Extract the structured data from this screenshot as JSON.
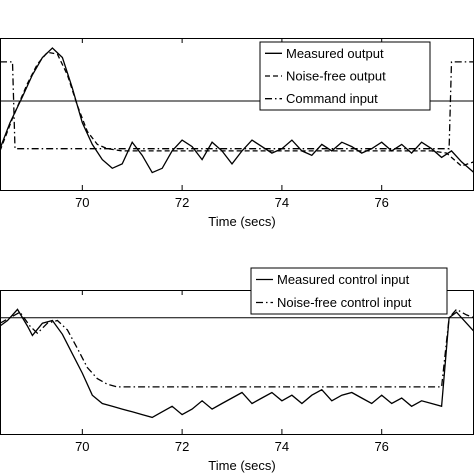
{
  "chart_data": [
    {
      "type": "line",
      "xlabel": "Time (secs)",
      "xlim": [
        68.35,
        77.85
      ],
      "ylim": [
        -1.45,
        2.05
      ],
      "xticks": [
        70,
        72,
        74,
        76
      ],
      "hline": 0.6,
      "legend_position": "top-right",
      "series": [
        {
          "name": "Measured output",
          "style": "solid",
          "x": [
            68.35,
            68.55,
            68.8,
            69.0,
            69.2,
            69.4,
            69.6,
            69.8,
            70.0,
            70.2,
            70.4,
            70.6,
            70.8,
            71.0,
            71.2,
            71.4,
            71.6,
            71.8,
            72.0,
            72.2,
            72.4,
            72.6,
            72.8,
            73.0,
            73.2,
            73.4,
            73.6,
            73.8,
            74.0,
            74.2,
            74.4,
            74.6,
            74.8,
            75.0,
            75.2,
            75.4,
            75.6,
            75.8,
            76.0,
            76.2,
            76.4,
            76.6,
            76.8,
            77.0,
            77.2,
            77.4,
            77.6,
            77.85
          ],
          "y": [
            -0.5,
            0.1,
            0.7,
            1.2,
            1.6,
            1.82,
            1.6,
            0.9,
            0.1,
            -0.4,
            -0.75,
            -0.95,
            -0.85,
            -0.35,
            -0.65,
            -1.05,
            -0.95,
            -0.55,
            -0.3,
            -0.45,
            -0.75,
            -0.35,
            -0.55,
            -0.85,
            -0.55,
            -0.3,
            -0.45,
            -0.6,
            -0.5,
            -0.3,
            -0.55,
            -0.65,
            -0.4,
            -0.55,
            -0.35,
            -0.45,
            -0.6,
            -0.5,
            -0.35,
            -0.55,
            -0.4,
            -0.6,
            -0.35,
            -0.5,
            -0.7,
            -0.55,
            -0.8,
            -1.05
          ]
        },
        {
          "name": "Noise-free output",
          "style": "dashed",
          "x": [
            68.35,
            68.6,
            68.9,
            69.1,
            69.3,
            69.5,
            69.7,
            69.9,
            70.1,
            70.3,
            70.5,
            70.8,
            71.0,
            72.0,
            73.0,
            74.0,
            75.0,
            76.0,
            77.0,
            77.3,
            77.6,
            77.85
          ],
          "y": [
            -0.55,
            0.2,
            1.0,
            1.45,
            1.72,
            1.68,
            1.2,
            0.5,
            -0.1,
            -0.4,
            -0.5,
            -0.55,
            -0.55,
            -0.55,
            -0.55,
            -0.55,
            -0.55,
            -0.55,
            -0.55,
            -0.6,
            -0.9,
            -0.8
          ]
        },
        {
          "name": "Command input",
          "style": "dashdot",
          "x": [
            68.35,
            68.6,
            68.65,
            77.35,
            77.4,
            77.85
          ],
          "y": [
            1.5,
            1.5,
            -0.5,
            -0.5,
            1.5,
            1.5
          ]
        }
      ]
    },
    {
      "type": "line",
      "xlabel": "Time (secs)",
      "xlim": [
        68.35,
        77.85
      ],
      "ylim": [
        -1.5,
        1.1
      ],
      "xticks": [
        70,
        72,
        74,
        76
      ],
      "hline": 0.6,
      "legend_position": "top-right",
      "series": [
        {
          "name": "Measured control input",
          "style": "solid",
          "x": [
            68.35,
            68.5,
            68.7,
            68.9,
            69.0,
            69.2,
            69.4,
            69.6,
            69.8,
            70.0,
            70.2,
            70.4,
            70.6,
            70.8,
            71.0,
            71.2,
            71.4,
            71.6,
            71.8,
            72.0,
            72.2,
            72.4,
            72.6,
            72.8,
            73.0,
            73.2,
            73.4,
            73.6,
            73.8,
            74.0,
            74.2,
            74.4,
            74.6,
            74.8,
            75.0,
            75.2,
            75.4,
            75.6,
            75.8,
            76.0,
            76.2,
            76.4,
            76.6,
            76.8,
            77.0,
            77.2,
            77.35,
            77.5,
            77.7,
            77.85
          ],
          "y": [
            0.45,
            0.55,
            0.75,
            0.45,
            0.28,
            0.5,
            0.55,
            0.3,
            -0.05,
            -0.4,
            -0.8,
            -0.95,
            -1.0,
            -1.05,
            -1.1,
            -1.15,
            -1.2,
            -1.1,
            -1.0,
            -1.15,
            -1.05,
            -0.9,
            -1.05,
            -0.95,
            -0.85,
            -0.75,
            -0.95,
            -0.85,
            -0.75,
            -0.9,
            -0.8,
            -0.95,
            -0.8,
            -0.7,
            -0.9,
            -0.8,
            -0.75,
            -0.85,
            -0.95,
            -0.8,
            -0.95,
            -0.85,
            -1.0,
            -0.9,
            -0.95,
            -1.0,
            0.6,
            0.7,
            0.5,
            0.35
          ]
        },
        {
          "name": "Noise-free control input",
          "style": "dashdot",
          "x": [
            68.35,
            68.55,
            68.75,
            68.95,
            69.1,
            69.3,
            69.5,
            69.7,
            69.9,
            70.1,
            70.3,
            70.5,
            70.7,
            71.0,
            72.0,
            73.0,
            74.0,
            75.0,
            76.0,
            77.0,
            77.2,
            77.35,
            77.5,
            77.7,
            77.85
          ],
          "y": [
            0.5,
            0.6,
            0.7,
            0.45,
            0.32,
            0.5,
            0.55,
            0.38,
            0.05,
            -0.3,
            -0.5,
            -0.6,
            -0.65,
            -0.65,
            -0.65,
            -0.65,
            -0.65,
            -0.65,
            -0.65,
            -0.65,
            -0.65,
            0.6,
            0.75,
            0.65,
            0.6
          ]
        }
      ]
    }
  ]
}
